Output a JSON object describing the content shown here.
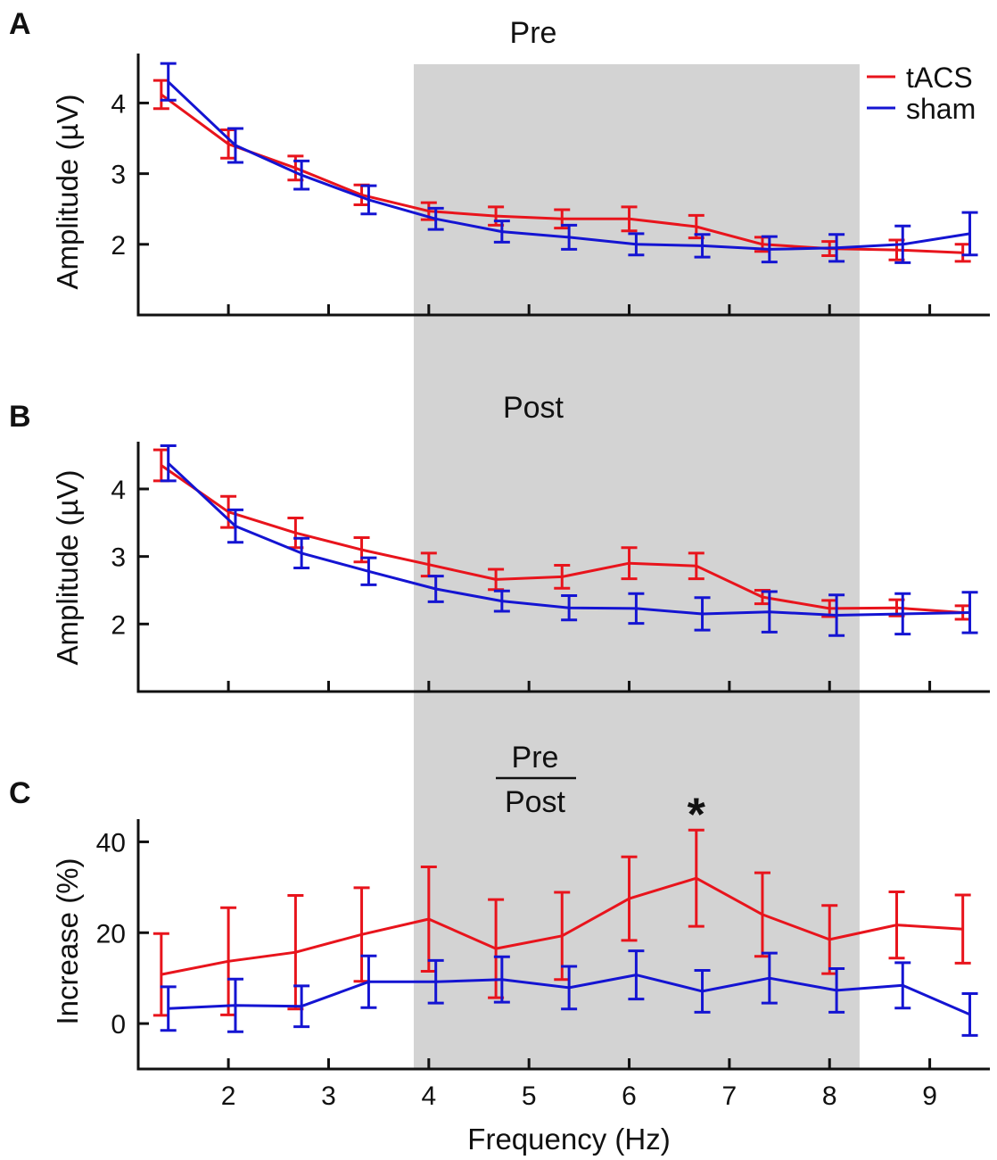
{
  "figure": {
    "xlabel": "Frequency (Hz)",
    "colors": {
      "tacs": "#e8141c",
      "sham": "#1414d2",
      "shade": "#d3d3d3",
      "axis": "#111111"
    },
    "shaded_region": {
      "x_from": 3.85,
      "x_to": 8.3
    },
    "xlim": [
      1.1,
      9.6
    ],
    "xticks": [
      2,
      3,
      4,
      5,
      6,
      7,
      8,
      9
    ],
    "legend": [
      {
        "key": "tacs",
        "label": "tACS",
        "color": "#e8141c"
      },
      {
        "key": "sham",
        "label": "sham",
        "color": "#1414d2"
      }
    ]
  },
  "chart_data": [
    {
      "panel": "A",
      "type": "line",
      "title": "Pre",
      "ylabel": "Amplitude (µV)",
      "ylim": [
        1.0,
        4.7
      ],
      "yticks": [
        2,
        3,
        4
      ],
      "series": [
        {
          "name": "tACS",
          "color": "#e8141c",
          "x": [
            1.33,
            2.0,
            2.67,
            3.33,
            4.0,
            4.67,
            5.33,
            6.0,
            6.67,
            7.33,
            8.0,
            8.67,
            9.33
          ],
          "y": [
            4.12,
            3.42,
            3.08,
            2.7,
            2.47,
            2.4,
            2.36,
            2.36,
            2.25,
            2.0,
            1.94,
            1.92,
            1.88
          ],
          "err": [
            0.2,
            0.2,
            0.17,
            0.14,
            0.12,
            0.13,
            0.13,
            0.17,
            0.16,
            0.1,
            0.1,
            0.14,
            0.12
          ]
        },
        {
          "name": "sham",
          "color": "#1414d2",
          "x": [
            1.4,
            2.07,
            2.73,
            3.4,
            4.07,
            4.73,
            5.4,
            6.07,
            6.73,
            7.4,
            8.07,
            8.73,
            9.4
          ],
          "y": [
            4.3,
            3.4,
            2.98,
            2.63,
            2.36,
            2.18,
            2.1,
            2.0,
            1.98,
            1.93,
            1.95,
            2.0,
            2.15
          ],
          "err": [
            0.26,
            0.24,
            0.2,
            0.2,
            0.15,
            0.15,
            0.17,
            0.15,
            0.16,
            0.18,
            0.19,
            0.26,
            0.3
          ]
        }
      ]
    },
    {
      "panel": "B",
      "type": "line",
      "title": "Post",
      "ylabel": "Amplitude (µV)",
      "ylim": [
        1.0,
        4.7
      ],
      "yticks": [
        2,
        3,
        4
      ],
      "series": [
        {
          "name": "tACS",
          "color": "#e8141c",
          "x": [
            1.33,
            2.0,
            2.67,
            3.33,
            4.0,
            4.67,
            5.33,
            6.0,
            6.67,
            7.33,
            8.0,
            8.67,
            9.33
          ],
          "y": [
            4.35,
            3.66,
            3.35,
            3.1,
            2.88,
            2.66,
            2.7,
            2.9,
            2.86,
            2.4,
            2.23,
            2.24,
            2.17
          ],
          "err": [
            0.23,
            0.23,
            0.22,
            0.18,
            0.17,
            0.15,
            0.17,
            0.23,
            0.19,
            0.1,
            0.12,
            0.12,
            0.1
          ]
        },
        {
          "name": "sham",
          "color": "#1414d2",
          "x": [
            1.4,
            2.07,
            2.73,
            3.4,
            4.07,
            4.73,
            5.4,
            6.07,
            6.73,
            7.4,
            8.07,
            8.73,
            9.4
          ],
          "y": [
            4.38,
            3.45,
            3.05,
            2.78,
            2.52,
            2.34,
            2.24,
            2.23,
            2.15,
            2.18,
            2.13,
            2.15,
            2.17
          ],
          "err": [
            0.26,
            0.24,
            0.22,
            0.2,
            0.19,
            0.15,
            0.18,
            0.22,
            0.24,
            0.3,
            0.3,
            0.3,
            0.3
          ]
        }
      ]
    },
    {
      "panel": "C",
      "type": "line",
      "title_numerator": "Pre",
      "title_denominator": "Post",
      "ylabel": "Increase (%)",
      "ylim": [
        -10,
        45
      ],
      "yticks": [
        0,
        20,
        40
      ],
      "annotation": {
        "text": "*",
        "x": 6.67,
        "y": 48
      },
      "series": [
        {
          "name": "tACS",
          "color": "#e8141c",
          "x": [
            1.33,
            2.0,
            2.67,
            3.33,
            4.0,
            4.67,
            5.33,
            6.0,
            6.67,
            7.33,
            8.0,
            8.67,
            9.33
          ],
          "y": [
            10.8,
            13.7,
            15.7,
            19.6,
            23.0,
            16.5,
            19.3,
            27.5,
            32.0,
            24.0,
            18.5,
            21.7,
            20.8
          ],
          "err": [
            9,
            11.8,
            12.5,
            10.3,
            11.5,
            10.8,
            9.6,
            9.2,
            10.6,
            9.2,
            7.5,
            7.3,
            7.5
          ]
        },
        {
          "name": "sham",
          "color": "#1414d2",
          "x": [
            1.4,
            2.07,
            2.73,
            3.4,
            4.07,
            4.73,
            5.4,
            6.07,
            6.73,
            7.4,
            8.07,
            8.73,
            9.4
          ],
          "y": [
            3.3,
            4.0,
            3.8,
            9.2,
            9.2,
            9.7,
            7.9,
            10.7,
            7.1,
            10.0,
            7.3,
            8.4,
            2.0
          ],
          "err": [
            4.8,
            5.8,
            4.5,
            5.7,
            4.7,
            5.0,
            4.7,
            5.3,
            4.6,
            5.5,
            4.8,
            5.0,
            4.6
          ]
        }
      ]
    }
  ]
}
